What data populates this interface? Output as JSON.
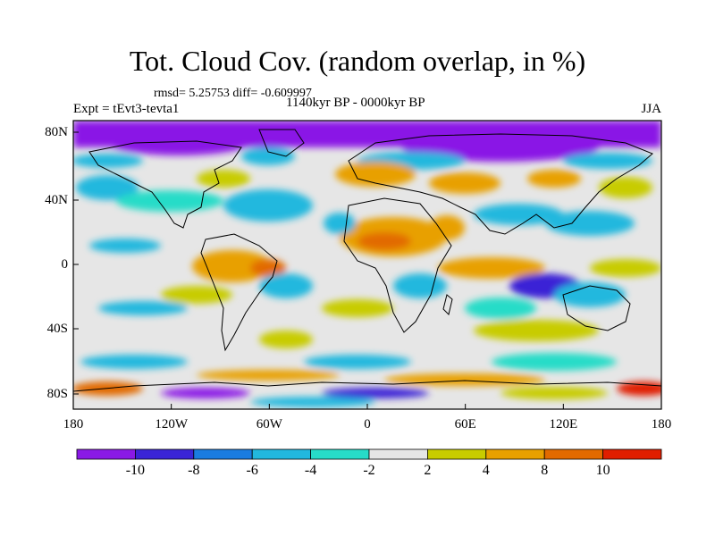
{
  "title": "Tot. Cloud Cov. (random overlap, in %)",
  "stats": "rmsd= 5.25753 diff= -0.609997",
  "experiment": "Expt = tEvt3-tevta1",
  "period": "1140kyr BP - 0000kyr BP",
  "season": "JJA",
  "lat_ticks": [
    "80N",
    "40N",
    "0",
    "40S",
    "80S"
  ],
  "lon_ticks": [
    "180",
    "120W",
    "60W",
    "0",
    "60E",
    "120E",
    "180"
  ],
  "colorbar": {
    "labels": [
      "-10",
      "-8",
      "-6",
      "-4",
      "-2",
      "2",
      "4",
      "8",
      "10"
    ],
    "colors": [
      "#8a19e6",
      "#3a24d6",
      "#1a7ce0",
      "#22b8de",
      "#27dcc8",
      "#e6e6e6",
      "#c8cc00",
      "#e8a000",
      "#e26a00",
      "#e01e00"
    ]
  }
}
